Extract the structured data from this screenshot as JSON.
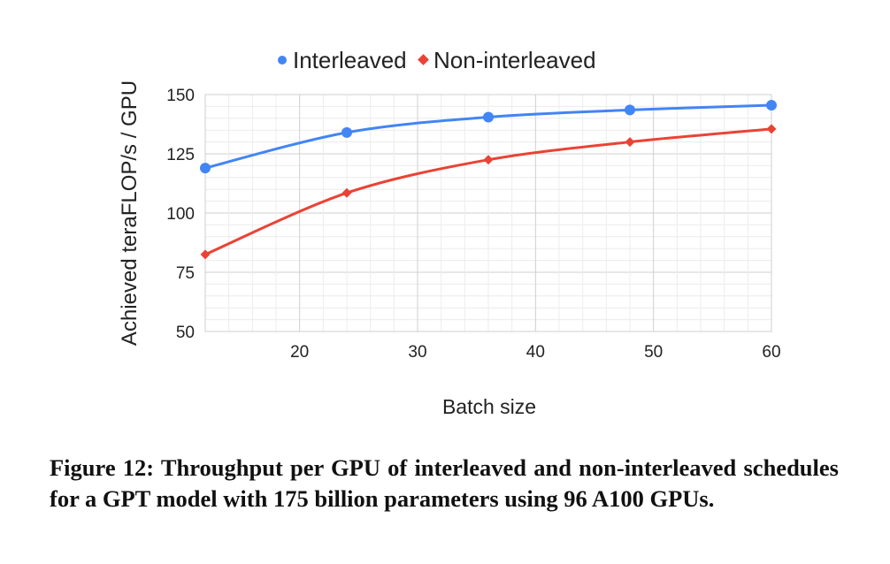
{
  "chart_data": {
    "type": "line",
    "xlabel": "Batch size",
    "ylabel": "Achieved teraFLOP/s / GPU",
    "xlim": [
      12,
      60
    ],
    "ylim": [
      50,
      150
    ],
    "x_ticks": [
      20,
      30,
      40,
      50,
      60
    ],
    "y_ticks": [
      50,
      75,
      100,
      125,
      150
    ],
    "grid": true,
    "legend_position": "top",
    "series": [
      {
        "name": "Interleaved",
        "color": "#4285f4",
        "marker": "circle",
        "x": [
          12,
          24,
          36,
          48,
          60
        ],
        "values": [
          119,
          134,
          140.5,
          143.5,
          145.5
        ]
      },
      {
        "name": "Non-interleaved",
        "color": "#ea4335",
        "marker": "diamond",
        "x": [
          12,
          24,
          36,
          48,
          60
        ],
        "values": [
          82.5,
          108.5,
          122.5,
          130,
          135.5
        ]
      }
    ]
  },
  "caption": "Figure 12: Throughput per GPU of interleaved and non-interleaved schedules for a GPT model with 175 billion parameters using 96 A100 GPUs."
}
